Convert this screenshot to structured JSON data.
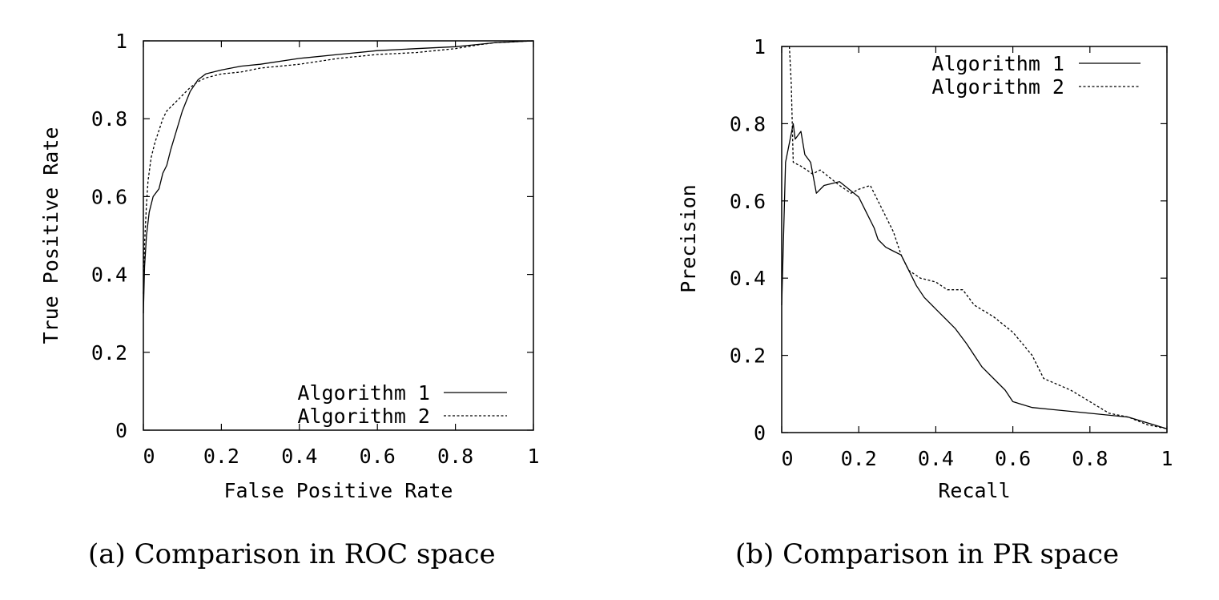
{
  "chart_data": [
    {
      "type": "line",
      "caption": "(a) Comparison in ROC space",
      "xlabel": "False Positive Rate",
      "ylabel": "True Positive Rate",
      "xlim": [
        0,
        1
      ],
      "ylim": [
        0,
        1
      ],
      "xticks": [
        "0",
        "0.2",
        "0.4",
        "0.6",
        "0.8",
        "1"
      ],
      "yticks": [
        "0",
        "0.2",
        "0.4",
        "0.6",
        "0.8",
        "1"
      ],
      "grid": false,
      "legend_position": "bottom-right",
      "series": [
        {
          "name": "Algorithm 1",
          "style": "solid",
          "points": [
            [
              0,
              0.3
            ],
            [
              0.003,
              0.42
            ],
            [
              0.008,
              0.5
            ],
            [
              0.015,
              0.56
            ],
            [
              0.025,
              0.6
            ],
            [
              0.04,
              0.62
            ],
            [
              0.05,
              0.66
            ],
            [
              0.06,
              0.68
            ],
            [
              0.07,
              0.72
            ],
            [
              0.085,
              0.77
            ],
            [
              0.1,
              0.82
            ],
            [
              0.12,
              0.87
            ],
            [
              0.14,
              0.9
            ],
            [
              0.16,
              0.915
            ],
            [
              0.2,
              0.925
            ],
            [
              0.25,
              0.935
            ],
            [
              0.3,
              0.94
            ],
            [
              0.4,
              0.955
            ],
            [
              0.5,
              0.965
            ],
            [
              0.6,
              0.975
            ],
            [
              0.7,
              0.98
            ],
            [
              0.8,
              0.985
            ],
            [
              0.85,
              0.99
            ],
            [
              0.9,
              0.995
            ],
            [
              1,
              1
            ]
          ]
        },
        {
          "name": "Algorithm 2",
          "style": "dashed",
          "points": [
            [
              0,
              0.35
            ],
            [
              0.003,
              0.48
            ],
            [
              0.008,
              0.58
            ],
            [
              0.012,
              0.64
            ],
            [
              0.02,
              0.7
            ],
            [
              0.03,
              0.74
            ],
            [
              0.04,
              0.77
            ],
            [
              0.05,
              0.8
            ],
            [
              0.06,
              0.82
            ],
            [
              0.08,
              0.84
            ],
            [
              0.1,
              0.86
            ],
            [
              0.12,
              0.88
            ],
            [
              0.14,
              0.895
            ],
            [
              0.16,
              0.905
            ],
            [
              0.2,
              0.915
            ],
            [
              0.25,
              0.92
            ],
            [
              0.3,
              0.93
            ],
            [
              0.4,
              0.94
            ],
            [
              0.5,
              0.955
            ],
            [
              0.6,
              0.965
            ],
            [
              0.7,
              0.97
            ],
            [
              0.8,
              0.98
            ],
            [
              0.86,
              0.99
            ],
            [
              0.9,
              0.995
            ],
            [
              1,
              1
            ]
          ]
        }
      ]
    },
    {
      "type": "line",
      "caption": "(b) Comparison in PR space",
      "xlabel": "Recall",
      "ylabel": "Precision",
      "xlim": [
        0,
        1
      ],
      "ylim": [
        0,
        1
      ],
      "xticks": [
        "0",
        "0.2",
        "0.4",
        "0.6",
        "0.8",
        "1"
      ],
      "yticks": [
        "0",
        "0.2",
        "0.4",
        "0.6",
        "0.8",
        "1"
      ],
      "grid": false,
      "legend_position": "top-right",
      "series": [
        {
          "name": "Algorithm 1",
          "style": "solid",
          "points": [
            [
              0,
              0.33
            ],
            [
              0.01,
              0.7
            ],
            [
              0.03,
              0.8
            ],
            [
              0.035,
              0.76
            ],
            [
              0.05,
              0.78
            ],
            [
              0.06,
              0.72
            ],
            [
              0.075,
              0.7
            ],
            [
              0.09,
              0.62
            ],
            [
              0.11,
              0.64
            ],
            [
              0.15,
              0.65
            ],
            [
              0.2,
              0.61
            ],
            [
              0.22,
              0.57
            ],
            [
              0.24,
              0.53
            ],
            [
              0.25,
              0.5
            ],
            [
              0.27,
              0.48
            ],
            [
              0.29,
              0.47
            ],
            [
              0.31,
              0.46
            ],
            [
              0.33,
              0.42
            ],
            [
              0.35,
              0.38
            ],
            [
              0.37,
              0.35
            ],
            [
              0.4,
              0.32
            ],
            [
              0.43,
              0.29
            ],
            [
              0.45,
              0.27
            ],
            [
              0.48,
              0.23
            ],
            [
              0.5,
              0.2
            ],
            [
              0.52,
              0.17
            ],
            [
              0.55,
              0.14
            ],
            [
              0.58,
              0.11
            ],
            [
              0.6,
              0.08
            ],
            [
              0.65,
              0.065
            ],
            [
              0.7,
              0.06
            ],
            [
              0.8,
              0.05
            ],
            [
              0.9,
              0.04
            ],
            [
              0.95,
              0.025
            ],
            [
              1,
              0.01
            ]
          ]
        },
        {
          "name": "Algorithm 2",
          "style": "dashed",
          "points": [
            [
              0.02,
              1.0
            ],
            [
              0.025,
              0.9
            ],
            [
              0.03,
              0.7
            ],
            [
              0.05,
              0.69
            ],
            [
              0.08,
              0.67
            ],
            [
              0.1,
              0.68
            ],
            [
              0.15,
              0.64
            ],
            [
              0.18,
              0.62
            ],
            [
              0.2,
              0.63
            ],
            [
              0.23,
              0.64
            ],
            [
              0.25,
              0.6
            ],
            [
              0.27,
              0.56
            ],
            [
              0.29,
              0.52
            ],
            [
              0.31,
              0.46
            ],
            [
              0.33,
              0.42
            ],
            [
              0.36,
              0.4
            ],
            [
              0.4,
              0.39
            ],
            [
              0.43,
              0.37
            ],
            [
              0.47,
              0.37
            ],
            [
              0.5,
              0.33
            ],
            [
              0.55,
              0.3
            ],
            [
              0.6,
              0.26
            ],
            [
              0.65,
              0.2
            ],
            [
              0.68,
              0.14
            ],
            [
              0.75,
              0.11
            ],
            [
              0.8,
              0.08
            ],
            [
              0.85,
              0.05
            ],
            [
              0.9,
              0.04
            ],
            [
              0.95,
              0.02
            ],
            [
              1,
              0.01
            ]
          ]
        }
      ]
    }
  ]
}
